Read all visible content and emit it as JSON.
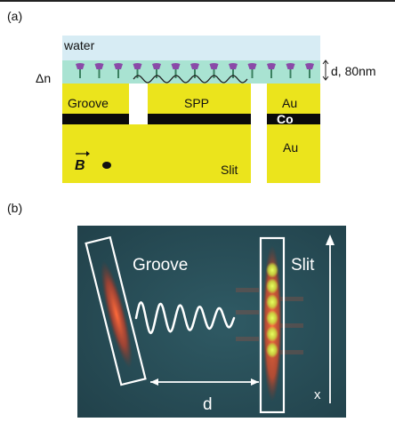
{
  "panel_a": {
    "label": "(a)",
    "water": "water",
    "delta_n": "Δn",
    "thickness": "d, 80nm",
    "groove": "Groove",
    "spp": "SPP",
    "au_top": "Au",
    "co": "Co",
    "au_bottom": "Au",
    "b_field": "B",
    "slit": "Slit",
    "colors": {
      "water": "#d7ecf4",
      "sensing_layer": "#a9e3d2",
      "gold": "#ebe41c",
      "cobalt": "#0a0a0a",
      "molecule": "#8a4aa8"
    }
  },
  "panel_b": {
    "label": "(b)",
    "groove": "Groove",
    "slit": "Slit",
    "d": "d",
    "x": "x",
    "colors": {
      "background": "#284d57",
      "emission": "#e0502a",
      "hotspot": "#d8f040"
    }
  }
}
